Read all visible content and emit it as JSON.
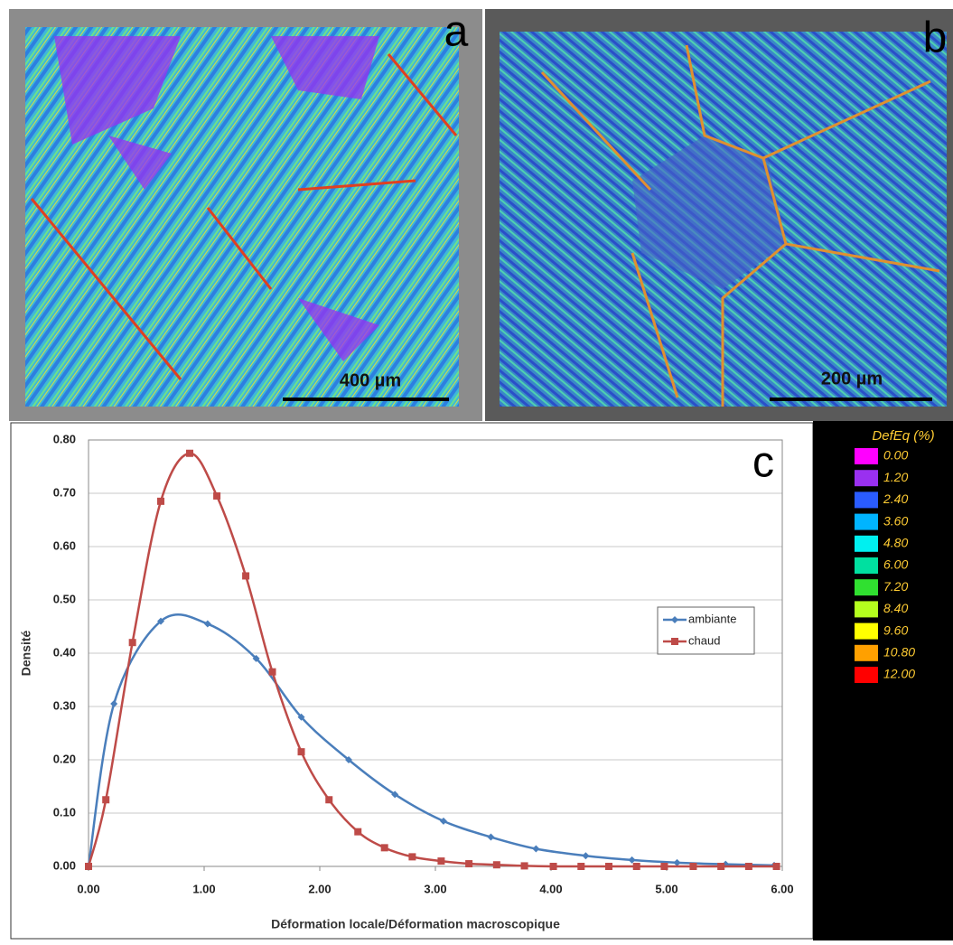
{
  "panels": [
    {
      "label": "a",
      "scale_bar": "400 µm"
    },
    {
      "label": "b",
      "scale_bar": "200 µm"
    },
    {
      "label": "c"
    }
  ],
  "color_scale": {
    "title": "DefEq (%)",
    "colors": [
      "#ff00ff",
      "#9a30f0",
      "#2a5cff",
      "#00b4ff",
      "#00f0f0",
      "#00e0a0",
      "#30e030",
      "#b4ff1e",
      "#ffff00",
      "#ffa000",
      "#ff0000"
    ],
    "labels": [
      "0.00",
      "1.20",
      "2.40",
      "3.60",
      "4.80",
      "6.00",
      "7.20",
      "8.40",
      "9.60",
      "10.80",
      "12.00"
    ]
  },
  "chart_data": {
    "type": "line",
    "x_label": "Déformation locale/Déformation macroscopique",
    "y_label": "Densité",
    "xlim": [
      0,
      6
    ],
    "ylim": [
      0,
      0.8
    ],
    "xticks": [
      {
        "value": 0,
        "label": "0.00"
      },
      {
        "value": 1,
        "label": "1.00"
      },
      {
        "value": 2,
        "label": "2.00"
      },
      {
        "value": 3,
        "label": "3.00"
      },
      {
        "value": 4,
        "label": "4.00"
      },
      {
        "value": 5,
        "label": "5.00"
      },
      {
        "value": 6,
        "label": "6.00"
      }
    ],
    "yticks": [
      {
        "value": 0,
        "label": "0.00"
      },
      {
        "value": 0.1,
        "label": "0.10"
      },
      {
        "value": 0.2,
        "label": "0.20"
      },
      {
        "value": 0.3,
        "label": "0.30"
      },
      {
        "value": 0.4,
        "label": "0.40"
      },
      {
        "value": 0.5,
        "label": "0.50"
      },
      {
        "value": 0.6,
        "label": "0.60"
      },
      {
        "value": 0.7,
        "label": "0.70"
      },
      {
        "value": 0.8,
        "label": "0.80"
      }
    ],
    "grid": true,
    "legend": "right",
    "series": [
      {
        "name": "ambiante",
        "color": "#4a7ebb",
        "marker": "diamond",
        "x": [
          0,
          0.22,
          0.625,
          1.03,
          1.45,
          1.84,
          2.25,
          2.65,
          3.07,
          3.48,
          3.87,
          4.3,
          4.7,
          5.09,
          5.51,
          5.93
        ],
        "values": [
          0,
          0.305,
          0.46,
          0.455,
          0.39,
          0.28,
          0.2,
          0.135,
          0.085,
          0.055,
          0.033,
          0.02,
          0.012,
          0.007,
          0.004,
          0.002
        ]
      },
      {
        "name": "chaud",
        "color": "#be4b48",
        "marker": "square",
        "x": [
          0,
          0.15,
          0.38,
          0.625,
          0.875,
          1.11,
          1.36,
          1.59,
          1.84,
          2.08,
          2.33,
          2.56,
          2.8,
          3.05,
          3.29,
          3.53,
          3.77,
          4.02,
          4.26,
          4.5,
          4.74,
          4.98,
          5.23,
          5.47,
          5.71,
          5.95
        ],
        "values": [
          0,
          0.125,
          0.42,
          0.685,
          0.775,
          0.695,
          0.545,
          0.365,
          0.215,
          0.125,
          0.065,
          0.035,
          0.018,
          0.01,
          0.005,
          0.003,
          0.001,
          0,
          0,
          0,
          0,
          0,
          0,
          0,
          0,
          0
        ]
      }
    ]
  }
}
